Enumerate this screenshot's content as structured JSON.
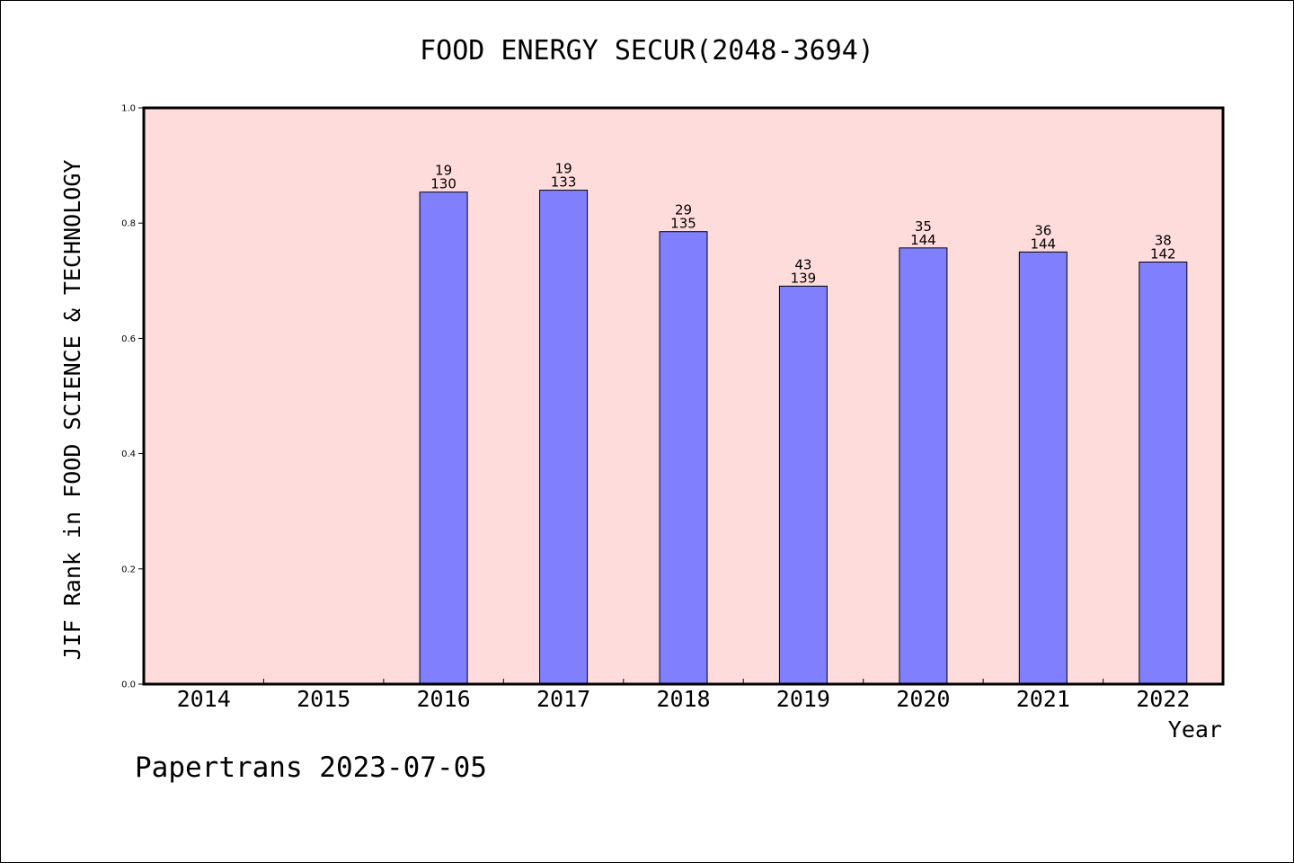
{
  "chart_data": {
    "type": "bar",
    "title": "FOOD ENERGY SECUR(2048-3694)",
    "xlabel": "Year",
    "ylabel": "JIF Rank in FOOD SCIENCE & TECHNOLOGY",
    "categories": [
      "2014",
      "2015",
      "2016",
      "2017",
      "2018",
      "2019",
      "2020",
      "2021",
      "2022"
    ],
    "values": [
      null,
      null,
      0.8538,
      0.8571,
      0.7852,
      0.6906,
      0.7569,
      0.75,
      0.7324
    ],
    "rank_labels": [
      "",
      "",
      "19",
      "19",
      "29",
      "43",
      "35",
      "36",
      "38"
    ],
    "total_labels": [
      "",
      "",
      "130",
      "133",
      "135",
      "139",
      "144",
      "144",
      "142"
    ],
    "ylim": [
      0.0,
      1.0
    ],
    "yticks": [
      "0.0",
      "0.2",
      "0.4",
      "0.6",
      "0.8",
      "1.0"
    ],
    "grid": false,
    "colors": {
      "bar": "#8080ff",
      "plot_background": "#ffdcdc",
      "axes": "#000000"
    }
  },
  "footer": {
    "text": "Papertrans 2023-07-05"
  }
}
